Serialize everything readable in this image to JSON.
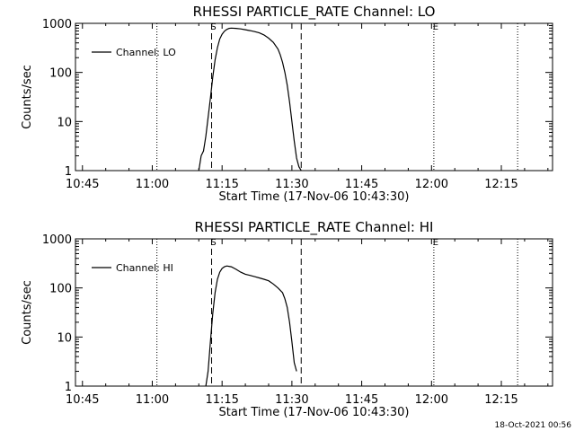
{
  "footer": {
    "timestamp": "18-Oct-2021 00:56"
  },
  "chart_data": [
    {
      "type": "line",
      "title": "RHESSI PARTICLE_RATE Channel: LO",
      "xlabel": "Start Time (17-Nov-06 10:43:30)",
      "ylabel": "Counts/sec",
      "xlim": [
        "10:43:30",
        "12:26:00"
      ],
      "ylim": [
        1,
        1000
      ],
      "yscale": "log",
      "xticks": [
        "10:45",
        "11:00",
        "11:15",
        "11:30",
        "11:45",
        "12:00",
        "12:15"
      ],
      "yticks": [
        "1",
        "10",
        "100",
        "1000"
      ],
      "grid": false,
      "legend": {
        "entries": [
          "Channel: LO"
        ],
        "placement": "top-left"
      },
      "markers": [
        {
          "time": "11:12:45",
          "style": "dashed",
          "label": "S"
        },
        {
          "time": "11:32:00",
          "style": "dashed",
          "label": ""
        },
        {
          "time": "11:01:00",
          "style": "dotted",
          "label": ""
        },
        {
          "time": "12:00:30",
          "style": "dotted",
          "label": "E"
        },
        {
          "time": "12:18:30",
          "style": "dotted",
          "label": ""
        }
      ],
      "series": [
        {
          "name": "Channel: LO",
          "x": [
            "11:10:00",
            "11:10:30",
            "11:11:00",
            "11:11:30",
            "11:12:00",
            "11:12:30",
            "11:13:00",
            "11:13:30",
            "11:14:00",
            "11:14:30",
            "11:15:00",
            "11:15:30",
            "11:16:00",
            "11:16:30",
            "11:17:00",
            "11:18:00",
            "11:19:00",
            "11:20:00",
            "11:21:00",
            "11:22:00",
            "11:23:00",
            "11:24:00",
            "11:25:00",
            "11:26:00",
            "11:27:00",
            "11:27:30",
            "11:28:00",
            "11:28:30",
            "11:29:00",
            "11:29:30",
            "11:30:00",
            "11:30:30",
            "11:31:00",
            "11:31:30",
            "11:32:00"
          ],
          "y": [
            1,
            2,
            2.5,
            5,
            12,
            30,
            80,
            180,
            320,
            480,
            600,
            690,
            750,
            790,
            800,
            790,
            770,
            740,
            710,
            680,
            640,
            580,
            500,
            410,
            300,
            230,
            160,
            100,
            55,
            25,
            10,
            4,
            1.8,
            1.2,
            1
          ]
        }
      ]
    },
    {
      "type": "line",
      "title": "RHESSI PARTICLE_RATE Channel: HI",
      "xlabel": "Start Time (17-Nov-06 10:43:30)",
      "ylabel": "Counts/sec",
      "xlim": [
        "10:43:30",
        "12:26:00"
      ],
      "ylim": [
        1,
        1000
      ],
      "yscale": "log",
      "xticks": [
        "10:45",
        "11:00",
        "11:15",
        "11:30",
        "11:45",
        "12:00",
        "12:15"
      ],
      "yticks": [
        "1",
        "10",
        "100",
        "1000"
      ],
      "grid": false,
      "legend": {
        "entries": [
          "Channel: HI"
        ],
        "placement": "top-left"
      },
      "markers": [
        {
          "time": "11:12:45",
          "style": "dashed",
          "label": "S"
        },
        {
          "time": "11:32:00",
          "style": "dashed",
          "label": ""
        },
        {
          "time": "11:01:00",
          "style": "dotted",
          "label": ""
        },
        {
          "time": "12:00:30",
          "style": "dotted",
          "label": "E"
        },
        {
          "time": "12:18:30",
          "style": "dotted",
          "label": ""
        }
      ],
      "series": [
        {
          "name": "Channel: HI",
          "x": [
            "11:11:30",
            "11:12:00",
            "11:12:30",
            "11:13:00",
            "11:13:30",
            "11:14:00",
            "11:14:30",
            "11:15:00",
            "11:15:30",
            "11:16:00",
            "11:17:00",
            "11:18:00",
            "11:19:00",
            "11:20:00",
            "11:21:00",
            "11:22:00",
            "11:23:00",
            "11:24:00",
            "11:25:00",
            "11:26:00",
            "11:27:00",
            "11:28:00",
            "11:28:30",
            "11:29:00",
            "11:29:30",
            "11:30:00",
            "11:30:30",
            "11:31:00"
          ],
          "y": [
            1,
            2,
            8,
            30,
            80,
            150,
            210,
            250,
            270,
            280,
            270,
            240,
            210,
            190,
            180,
            170,
            160,
            150,
            140,
            120,
            100,
            80,
            60,
            40,
            20,
            8,
            3,
            2
          ]
        }
      ]
    }
  ]
}
